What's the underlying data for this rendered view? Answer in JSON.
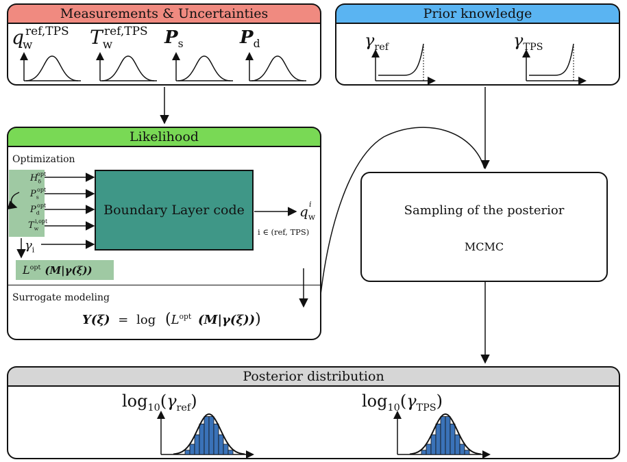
{
  "colors": {
    "measurements_header": "#f08a80",
    "prior_header": "#5ab4f2",
    "likelihood_header": "#79d955",
    "posterior_header": "#d6d6d6",
    "bl_code_fill": "#3f9787",
    "input_fill": "#9fc9a3",
    "hist_fill": "#3a72b8"
  },
  "measurements": {
    "title": "Measurements & Uncertainties",
    "symbols": [
      {
        "base": "q",
        "sub": "w",
        "sup": "ref,TPS"
      },
      {
        "base": "T",
        "sub": "w",
        "sup": "ref,TPS"
      },
      {
        "base": "P",
        "sub": "s",
        "sup": ""
      },
      {
        "base": "P",
        "sub": "d",
        "sup": ""
      }
    ]
  },
  "prior": {
    "title": "Prior knowledge",
    "symbols": [
      {
        "base": "γ",
        "sub": "ref"
      },
      {
        "base": "γ",
        "sub": "TPS"
      }
    ]
  },
  "likelihood": {
    "title": "Likelihood",
    "optimization_label": "Optimization",
    "inputs": [
      {
        "base": "H",
        "sub": "δ",
        "sup": "opt"
      },
      {
        "base": "P",
        "sub": "s",
        "sup": "opt"
      },
      {
        "base": "P",
        "sub": "d",
        "sup": "opt"
      },
      {
        "base": "T",
        "sub": "w",
        "sup": "i,opt"
      }
    ],
    "gamma_input": {
      "base": "γ",
      "sub": "i"
    },
    "bl_code": "Boundary Layer code",
    "output": {
      "base": "q",
      "sub": "w",
      "sup": "i"
    },
    "index_note": "i ∈ (ref, TPS)",
    "l_opt": {
      "L": "L",
      "sup": "opt",
      "args": "(M|γ(ξ))"
    },
    "surrogate_label": "Surrogate modeling",
    "surrogate_eq": {
      "lhs": "Y(ξ)",
      "eq": "=",
      "log": "log",
      "L": "L",
      "sup": "opt",
      "args": "(M|γ(ξ))"
    }
  },
  "sampling": {
    "title": "Sampling of the posterior",
    "method": "MCMC"
  },
  "posterior": {
    "title": "Posterior distribution",
    "labels": [
      {
        "fn": "log",
        "fn_sub": "10",
        "base": "γ",
        "sub": "ref"
      },
      {
        "fn": "log",
        "fn_sub": "10",
        "base": "γ",
        "sub": "TPS"
      }
    ]
  }
}
